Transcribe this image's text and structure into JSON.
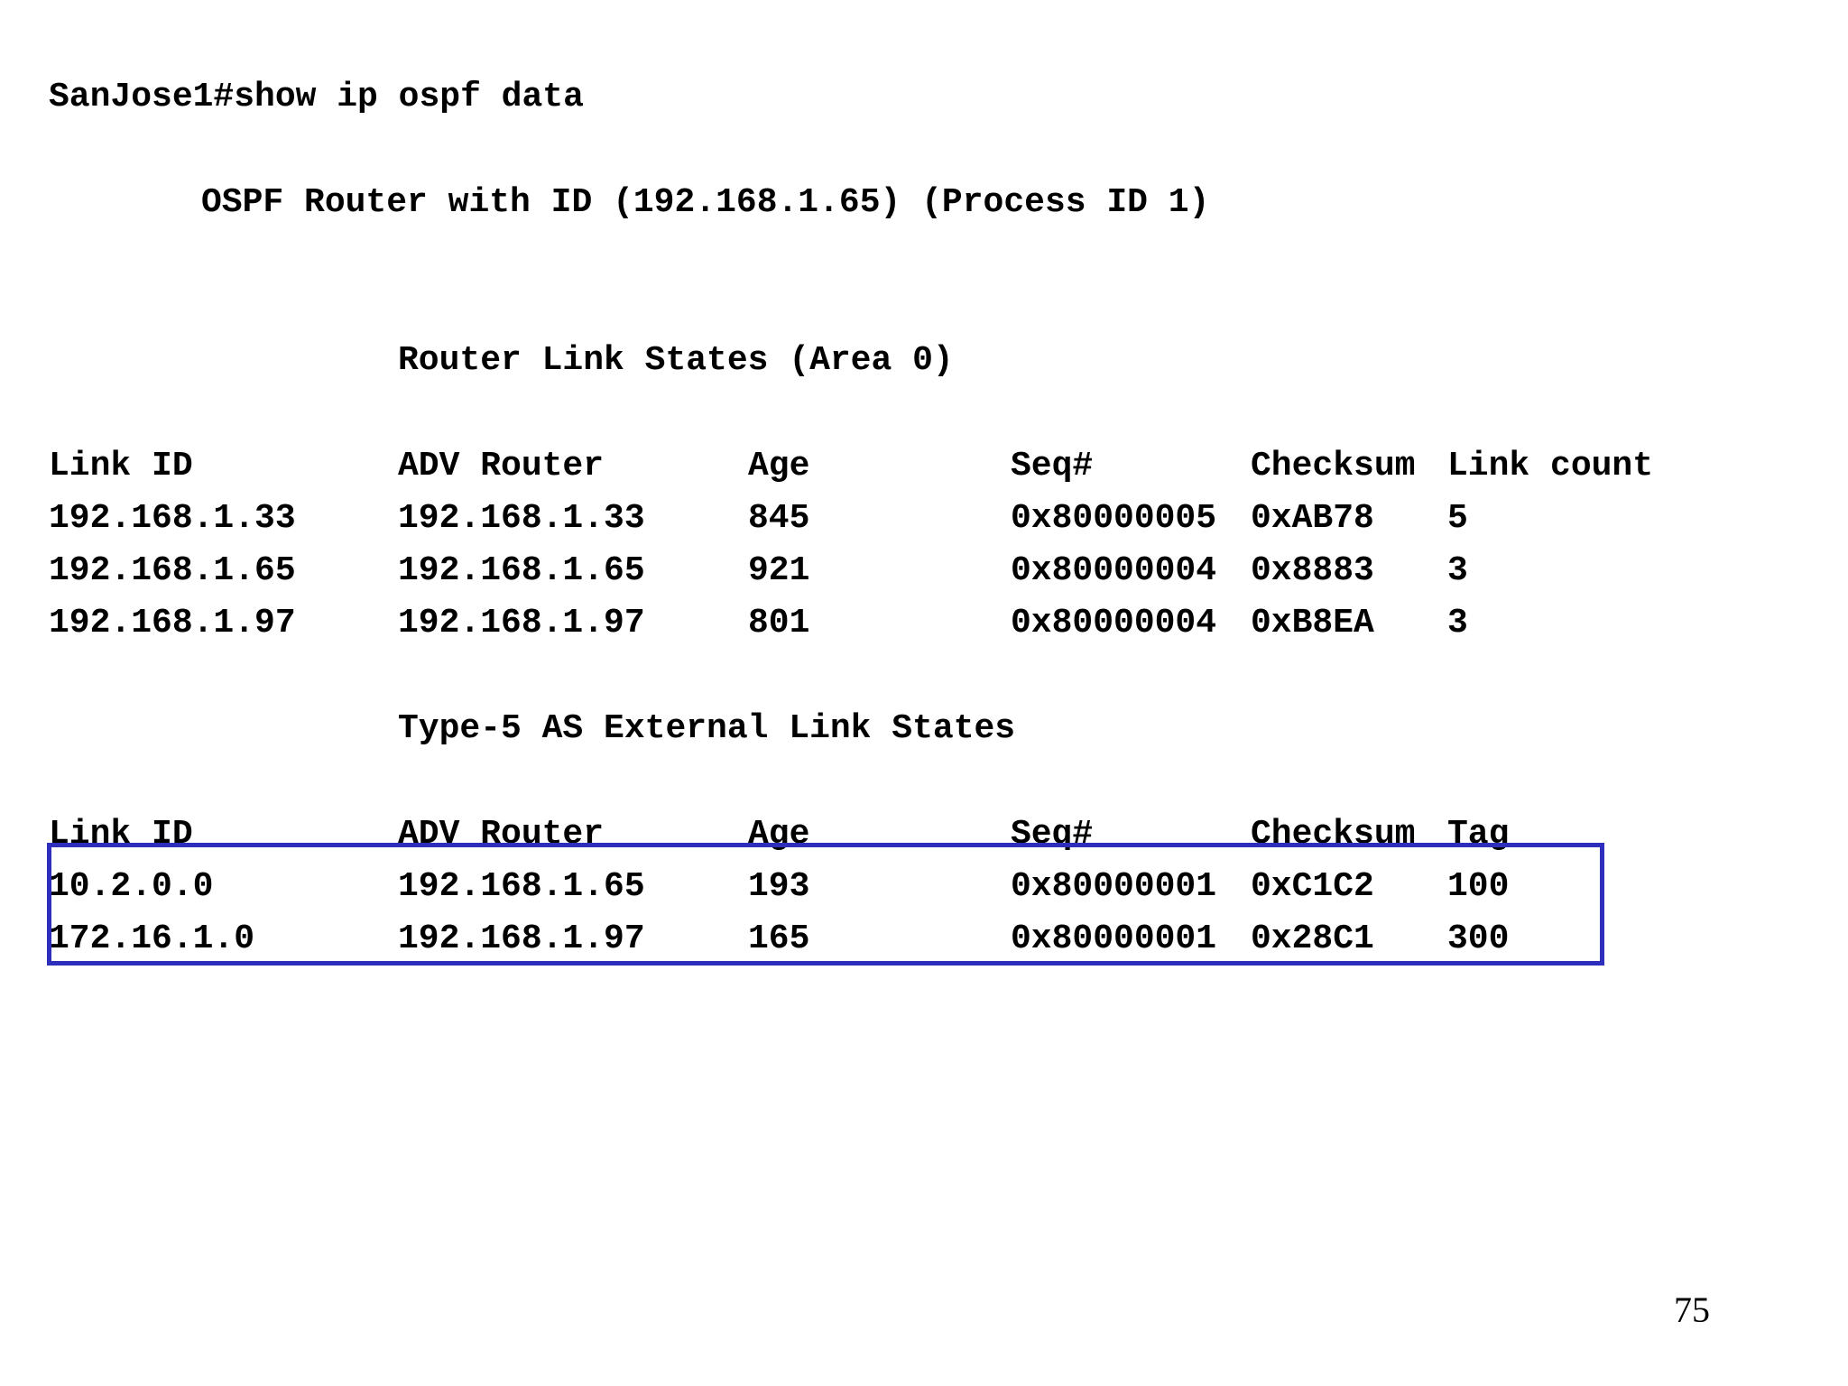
{
  "command_line": "SanJose1#show ip ospf data",
  "router_header": "OSPF Router with ID (192.168.1.65) (Process ID 1)",
  "router_section": {
    "title": "Router Link States (Area 0)",
    "columns": [
      "Link ID",
      "ADV Router",
      "Age",
      "Seq#",
      "Checksum",
      "Link count"
    ],
    "rows": [
      [
        "192.168.1.33",
        "192.168.1.33",
        "845",
        "0x80000005",
        "0xAB78",
        "5"
      ],
      [
        "192.168.1.65",
        "192.168.1.65",
        "921",
        "0x80000004",
        "0x8883",
        "3"
      ],
      [
        "192.168.1.97",
        "192.168.1.97",
        "801",
        "0x80000004",
        "0xB8EA",
        "3"
      ]
    ]
  },
  "external_section": {
    "title": "Type-5 AS External Link States",
    "columns": [
      "Link ID",
      "ADV Router",
      "Age",
      "Seq#",
      "Checksum",
      "Tag"
    ],
    "rows": [
      [
        "10.2.0.0",
        "192.168.1.65",
        "193",
        "0x80000001",
        "0xC1C2",
        "100"
      ],
      [
        "172.16.1.0",
        "192.168.1.97",
        "165",
        "0x80000001",
        "0x28C1",
        "300"
      ]
    ]
  },
  "highlight_color": "#2e2ebd",
  "page_number": "75"
}
